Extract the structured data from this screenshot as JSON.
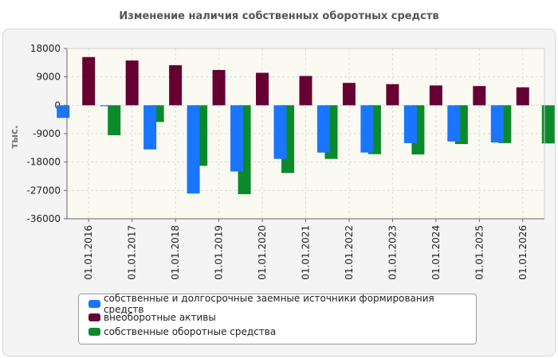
{
  "chart_data": {
    "type": "bar",
    "title": "Изменение наличия собственных оборотных средств",
    "ylabel": "тыс.",
    "xlabel": "",
    "ylim": [
      -36000,
      18000
    ],
    "yticks": [
      18000,
      9000,
      0,
      -9000,
      -18000,
      -27000,
      -36000
    ],
    "ytick_labels": [
      "18000",
      "9000",
      "0",
      "-9000",
      "-18000",
      "-27000",
      "-36000"
    ],
    "categories": [
      "01.01.2016",
      "01.01.2017",
      "01.01.2018",
      "01.01.2019",
      "01.01.2020",
      "01.01.2021",
      "01.01.2022",
      "01.01.2023",
      "01.01.2024",
      "01.01.2025",
      "01.01.2026"
    ],
    "series": [
      {
        "name": "собственные и долгосрочные заемные источники формирования средств",
        "color": "#1a75ff",
        "values": [
          -4000,
          -300,
          -14000,
          -28000,
          -21000,
          -17000,
          -15000,
          -15000,
          -12000,
          -11500,
          -11800
        ]
      },
      {
        "name": "внеоборотные активы",
        "color": "#660033",
        "values": [
          15300,
          14200,
          12700,
          11200,
          10300,
          9300,
          7100,
          6700,
          6300,
          6100,
          5700
        ]
      },
      {
        "name": "собственные оборотные средства",
        "color": "#0a8a2a",
        "values": [
          -9500,
          -5300,
          -19200,
          -28200,
          -21500,
          -17000,
          -15500,
          -15600,
          -12300,
          -12000,
          -12100
        ]
      }
    ],
    "grid": true,
    "legend_position": "bottom"
  }
}
